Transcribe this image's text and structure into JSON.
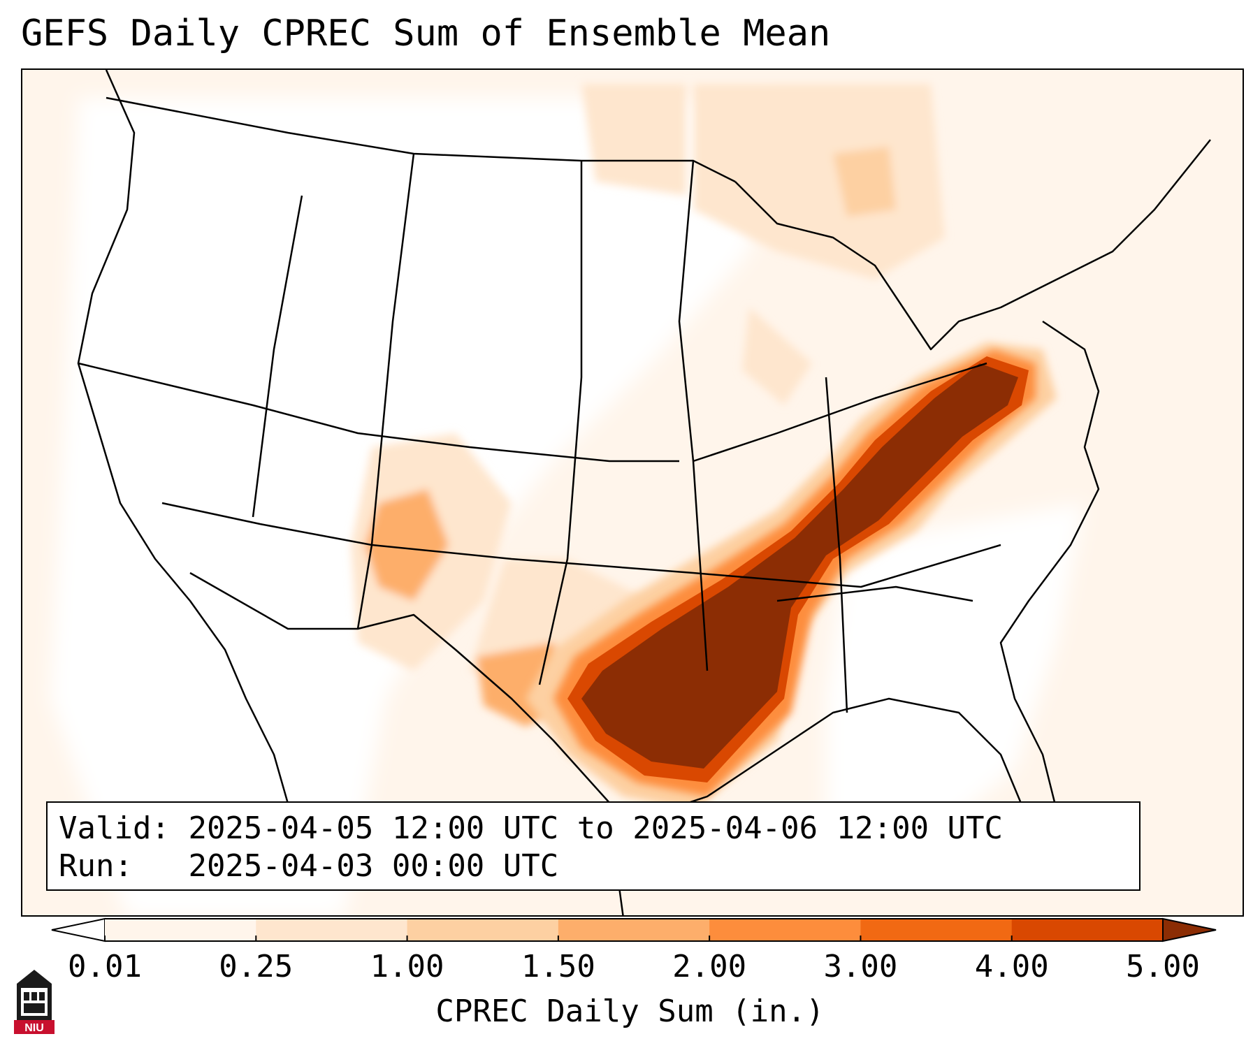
{
  "title": "GEFS Daily CPREC Sum of Ensemble Mean",
  "info": {
    "valid_label": "Valid:",
    "valid_value": "2025-04-05 12:00 UTC to 2025-04-06 12:00 UTC",
    "run_label": "Run:",
    "run_value": "2025-04-03 00:00 UTC"
  },
  "colorbar": {
    "label": "CPREC Daily Sum (in.)",
    "ticks": [
      "0.01",
      "0.25",
      "1.00",
      "1.50",
      "2.00",
      "3.00",
      "4.00",
      "5.00"
    ],
    "colors": [
      "#fff5eb",
      "#fee6ce",
      "#fdd0a2",
      "#fdae6b",
      "#fd8d3c",
      "#f16913",
      "#d94801",
      "#8c2d04"
    ],
    "extend": "both"
  },
  "logo": {
    "text": "NIU",
    "icon": "niu-logo-icon"
  }
}
